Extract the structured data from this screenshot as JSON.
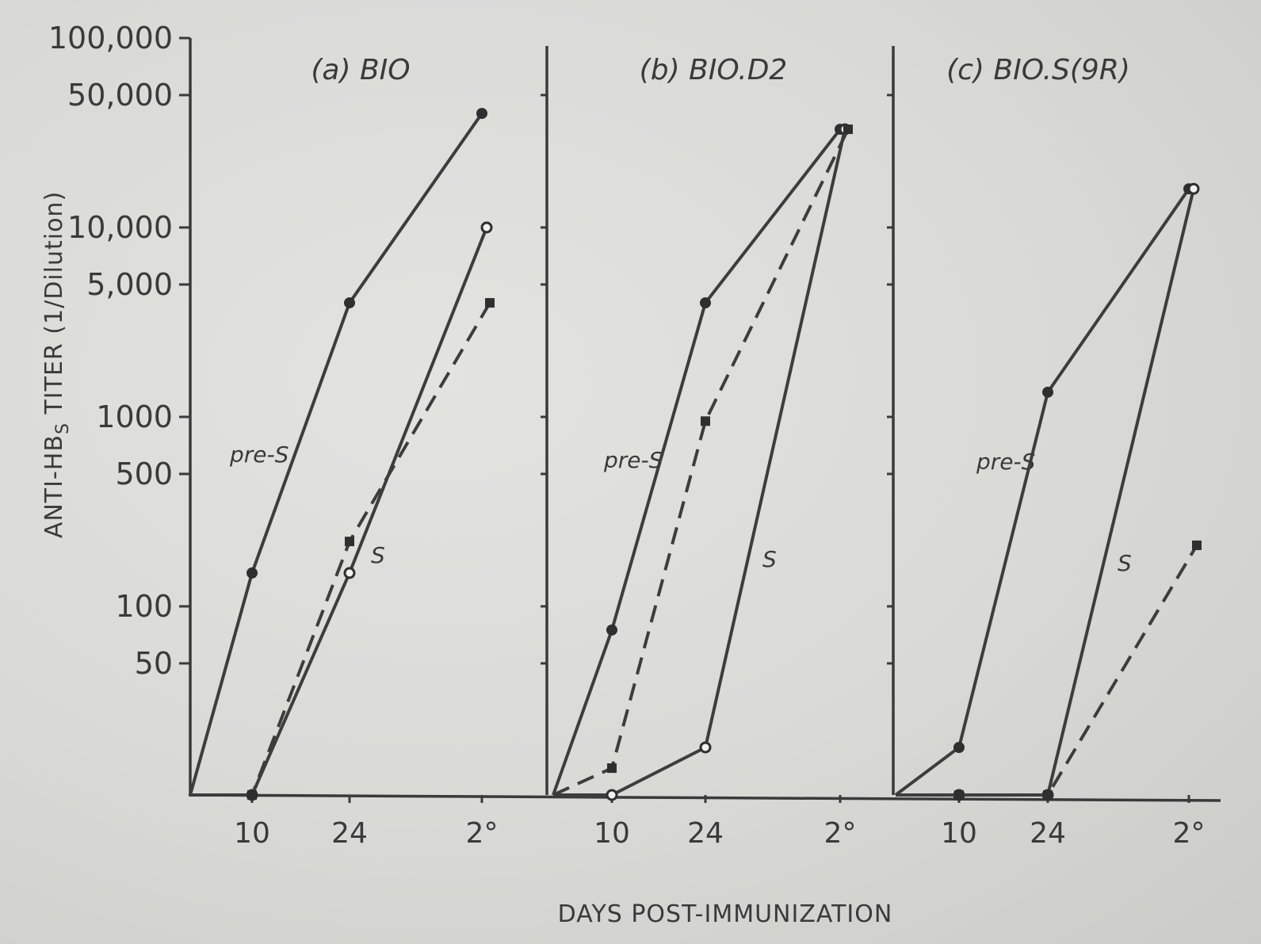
{
  "chart_data": {
    "type": "line",
    "y_axis": {
      "label_main": "ANTI-HB",
      "label_sub": "S",
      "label_rest": " TITER (1/Dilution)",
      "scale": "log",
      "ticks": [
        {
          "value": 100000,
          "label": "100,000"
        },
        {
          "value": 50000,
          "label": "50,000"
        },
        {
          "value": 10000,
          "label": "10,000"
        },
        {
          "value": 5000,
          "label": "5,000"
        },
        {
          "value": 1000,
          "label": "1000"
        },
        {
          "value": 500,
          "label": "500"
        },
        {
          "value": 100,
          "label": "100"
        },
        {
          "value": 50,
          "label": "50"
        }
      ]
    },
    "x_axis": {
      "label": "DAYS POST-IMMUNIZATION",
      "categories": [
        "10",
        "24",
        "2°"
      ]
    },
    "panels": [
      {
        "title": "(a) BIO",
        "labels": [
          {
            "text": "pre-S",
            "series": "pre-S"
          },
          {
            "text": "S",
            "series": "S"
          }
        ],
        "series": [
          {
            "name": "pre-S",
            "marker": "filled-circle",
            "style": "solid",
            "points": [
              {
                "x": "0",
                "y": 10
              },
              {
                "x": "10",
                "y": 150
              },
              {
                "x": "24",
                "y": 4000
              },
              {
                "x": "2°",
                "y": 40000
              }
            ]
          },
          {
            "name": "S",
            "marker": "open-circle",
            "style": "solid",
            "points": [
              {
                "x": "0",
                "y": 10
              },
              {
                "x": "10",
                "y": 10
              },
              {
                "x": "24",
                "y": 150
              },
              {
                "x": "2°",
                "y": 10000
              }
            ]
          },
          {
            "name": "",
            "marker": "filled-square",
            "style": "dashed",
            "points": [
              {
                "x": "0",
                "y": 10
              },
              {
                "x": "10",
                "y": 10
              },
              {
                "x": "24",
                "y": 220
              },
              {
                "x": "2°",
                "y": 4000
              }
            ]
          }
        ]
      },
      {
        "title": "(b) BIO.D2",
        "labels": [
          {
            "text": "pre-S",
            "series": "pre-S"
          },
          {
            "text": "S",
            "series": "S"
          }
        ],
        "series": [
          {
            "name": "pre-S",
            "marker": "filled-circle",
            "style": "solid",
            "points": [
              {
                "x": "0",
                "y": 10
              },
              {
                "x": "10",
                "y": 75
              },
              {
                "x": "24",
                "y": 4000
              },
              {
                "x": "2°",
                "y": 33000
              }
            ]
          },
          {
            "name": "S",
            "marker": "open-circle",
            "style": "solid",
            "points": [
              {
                "x": "0",
                "y": 10
              },
              {
                "x": "10",
                "y": 10
              },
              {
                "x": "24",
                "y": 18
              },
              {
                "x": "2°",
                "y": 33000
              }
            ]
          },
          {
            "name": "",
            "marker": "filled-square",
            "style": "dashed",
            "points": [
              {
                "x": "0",
                "y": 10
              },
              {
                "x": "10",
                "y": 14
              },
              {
                "x": "24",
                "y": 950
              },
              {
                "x": "2°",
                "y": 33000
              }
            ]
          }
        ]
      },
      {
        "title": "(c) BIO.S(9R)",
        "labels": [
          {
            "text": "pre-S",
            "series": "pre-S"
          },
          {
            "text": "S",
            "series": "S"
          }
        ],
        "series": [
          {
            "name": "pre-S",
            "marker": "filled-circle",
            "style": "solid",
            "points": [
              {
                "x": "0",
                "y": 10
              },
              {
                "x": "10",
                "y": 18
              },
              {
                "x": "24",
                "y": 1350
              },
              {
                "x": "2°",
                "y": 16000
              }
            ]
          },
          {
            "name": "S",
            "marker": "open-circle",
            "style": "solid",
            "points": [
              {
                "x": "0",
                "y": 10
              },
              {
                "x": "10",
                "y": 10
              },
              {
                "x": "24",
                "y": 10
              },
              {
                "x": "2°",
                "y": 16000
              }
            ]
          },
          {
            "name": "",
            "marker": "filled-square",
            "style": "dashed",
            "points": [
              {
                "x": "0",
                "y": 10
              },
              {
                "x": "10",
                "y": 10
              },
              {
                "x": "24",
                "y": 10
              },
              {
                "x": "2°",
                "y": 210
              }
            ]
          }
        ]
      }
    ]
  }
}
